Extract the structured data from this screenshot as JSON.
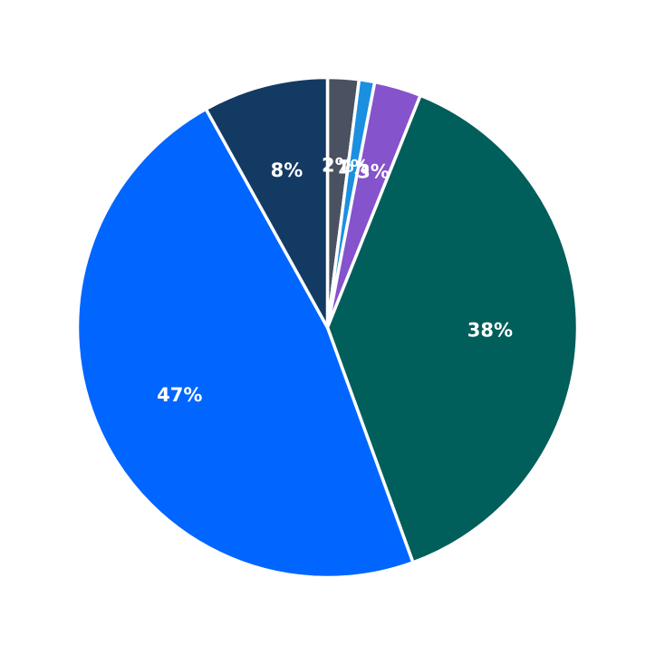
{
  "chart_data": {
    "type": "pie",
    "start": "top",
    "direction": "clockwise",
    "slices": [
      {
        "label": "2%",
        "value": 2,
        "color": "#4a5160"
      },
      {
        "label": "1%",
        "value": 1,
        "color": "#1b8fe0"
      },
      {
        "label": "3%",
        "value": 3,
        "color": "#8553cc"
      },
      {
        "label": "38%",
        "value": 38,
        "color": "#005e5b"
      },
      {
        "label": "47%",
        "value": 47,
        "color": "#0066ff"
      },
      {
        "label": "8%",
        "value": 8,
        "color": "#133a63"
      }
    ]
  }
}
